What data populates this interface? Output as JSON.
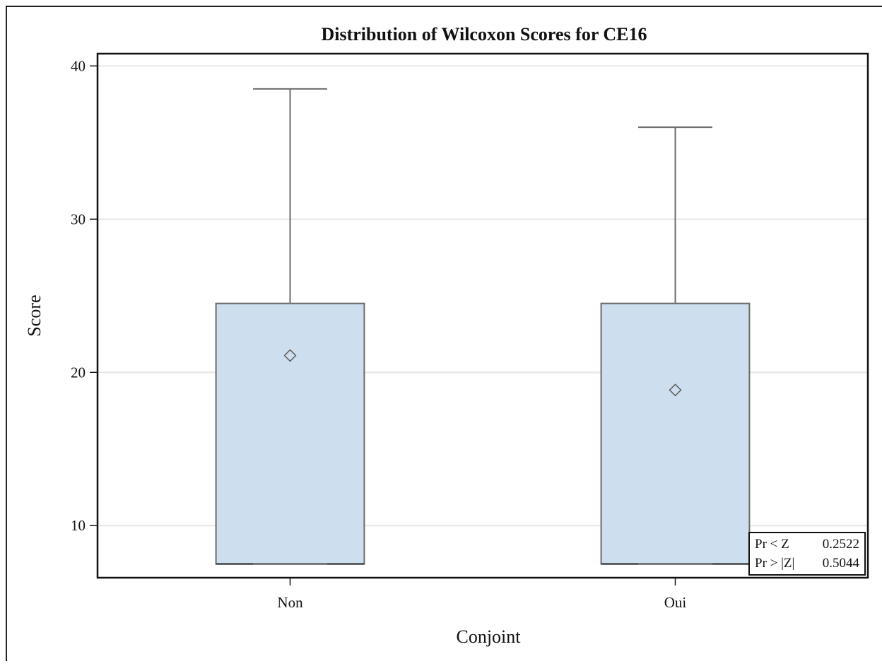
{
  "chart_data": {
    "type": "box",
    "title": "Distribution of Wilcoxon Scores for CE16",
    "xlabel": "Conjoint",
    "ylabel": "Score",
    "categories": [
      "Non",
      "Oui"
    ],
    "ylim": [
      6.6,
      40.8
    ],
    "yticks": [
      10,
      20,
      30,
      40
    ],
    "grid": true,
    "boxes": [
      {
        "category": "Non",
        "min": 7.5,
        "q1": 7.5,
        "median": 7.5,
        "q3": 24.5,
        "max": 38.5,
        "mean": 21.1
      },
      {
        "category": "Oui",
        "min": 7.5,
        "q1": 7.5,
        "median": 7.5,
        "q3": 24.5,
        "max": 36.0,
        "mean": 18.85
      }
    ],
    "inset_table": {
      "placement": "bottom-right",
      "rows": [
        {
          "label": "Pr < Z",
          "value": "0.2522"
        },
        {
          "label": "Pr > |Z|",
          "value": "0.5044"
        }
      ]
    },
    "colors": {
      "box_fill": "#cddeee",
      "box_stroke": "#6b6b6b",
      "grid": "#e6e6e6",
      "axis": "#111111"
    }
  }
}
